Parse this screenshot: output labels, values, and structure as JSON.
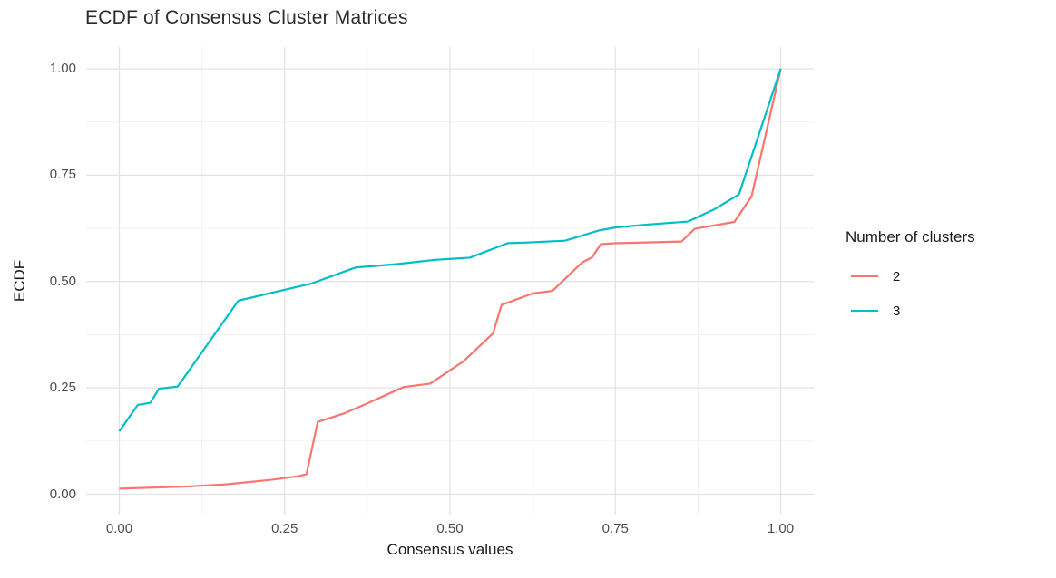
{
  "chart_data": {
    "type": "line",
    "title": "ECDF of Consensus Cluster Matrices",
    "xlabel": "Consensus values",
    "ylabel": "ECDF",
    "xlim": [
      0,
      1
    ],
    "ylim": [
      0,
      1
    ],
    "grid": "major+minor",
    "legend_position": "right",
    "legend_title": "Number of clusters",
    "x_tick_values": [
      0,
      0.25,
      0.5,
      0.75,
      1
    ],
    "x_tick_labels": [
      "0.00",
      "0.25",
      "0.50",
      "0.75",
      "1.00"
    ],
    "y_tick_values": [
      0,
      0.25,
      0.5,
      0.75,
      1
    ],
    "y_tick_labels": [
      "0.00",
      "0.25",
      "0.50",
      "0.75",
      "1.00"
    ],
    "x_minor_ticks": [
      0.125,
      0.375,
      0.625,
      0.875
    ],
    "y_minor_ticks": [
      0.125,
      0.375,
      0.625,
      0.875
    ],
    "series": [
      {
        "name": "2",
        "color": "#F8766D",
        "points": [
          [
            0.0,
            0.013
          ],
          [
            0.1,
            0.018
          ],
          [
            0.16,
            0.023
          ],
          [
            0.23,
            0.034
          ],
          [
            0.27,
            0.042
          ],
          [
            0.283,
            0.047
          ],
          [
            0.3,
            0.17
          ],
          [
            0.34,
            0.19
          ],
          [
            0.37,
            0.21
          ],
          [
            0.43,
            0.252
          ],
          [
            0.47,
            0.26
          ],
          [
            0.52,
            0.312
          ],
          [
            0.565,
            0.378
          ],
          [
            0.578,
            0.445
          ],
          [
            0.59,
            0.452
          ],
          [
            0.625,
            0.472
          ],
          [
            0.655,
            0.478
          ],
          [
            0.7,
            0.545
          ],
          [
            0.715,
            0.557
          ],
          [
            0.728,
            0.588
          ],
          [
            0.75,
            0.59
          ],
          [
            0.85,
            0.594
          ],
          [
            0.87,
            0.624
          ],
          [
            0.93,
            0.64
          ],
          [
            0.956,
            0.7
          ],
          [
            1.0,
            1.0
          ]
        ]
      },
      {
        "name": "3",
        "color": "#00BFC4",
        "points": [
          [
            0.0,
            0.148
          ],
          [
            0.028,
            0.21
          ],
          [
            0.047,
            0.215
          ],
          [
            0.06,
            0.248
          ],
          [
            0.088,
            0.253
          ],
          [
            0.095,
            0.268
          ],
          [
            0.18,
            0.455
          ],
          [
            0.24,
            0.477
          ],
          [
            0.29,
            0.495
          ],
          [
            0.357,
            0.533
          ],
          [
            0.39,
            0.537
          ],
          [
            0.42,
            0.541
          ],
          [
            0.477,
            0.551
          ],
          [
            0.53,
            0.556
          ],
          [
            0.587,
            0.59
          ],
          [
            0.62,
            0.592
          ],
          [
            0.674,
            0.596
          ],
          [
            0.725,
            0.62
          ],
          [
            0.75,
            0.627
          ],
          [
            0.8,
            0.634
          ],
          [
            0.86,
            0.641
          ],
          [
            0.9,
            0.67
          ],
          [
            0.937,
            0.705
          ],
          [
            1.0,
            1.0
          ]
        ]
      }
    ]
  },
  "theme": {
    "background": "#ffffff",
    "major_grid_color": "#e3e3e3",
    "minor_grid_color": "#f0f0f0",
    "tick_text_color": "#4d4d4d",
    "title_text_color": "#2b2b2b",
    "axis_label_color": "#1b1b1b"
  }
}
